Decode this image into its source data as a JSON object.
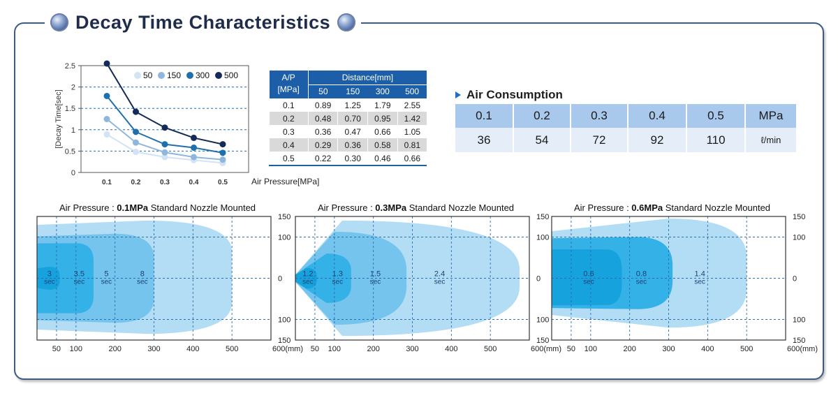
{
  "title": "Decay Time Characteristics",
  "chart_data": [
    {
      "type": "line",
      "ylabel": "[Decay Time[sec]",
      "xlabel": "Air Pressure[MPa]",
      "x": [
        0.1,
        0.2,
        0.3,
        0.4,
        0.5
      ],
      "x_tick_labels": [
        "0.1",
        "0.2",
        "0.3",
        "0.4",
        "0.5"
      ],
      "ylim": [
        0,
        2.5
      ],
      "y_tick_labels": [
        "0",
        "0.5",
        "1",
        "1.5",
        "2",
        "2.5"
      ],
      "y_ticks": [
        0,
        0.5,
        1,
        1.5,
        2,
        2.5
      ],
      "grid": "dashed horizontal",
      "legend_placement": "top-right",
      "series": [
        {
          "name": "50",
          "color": "#d3e3f3",
          "values": [
            0.89,
            0.48,
            0.36,
            0.29,
            0.22
          ]
        },
        {
          "name": "150",
          "color": "#8fb6dc",
          "values": [
            1.25,
            0.7,
            0.47,
            0.36,
            0.3
          ]
        },
        {
          "name": "300",
          "color": "#1e6fae",
          "values": [
            1.79,
            0.95,
            0.66,
            0.58,
            0.46
          ]
        },
        {
          "name": "500",
          "color": "#142a58",
          "values": [
            2.55,
            1.42,
            1.05,
            0.81,
            0.66
          ]
        }
      ]
    },
    {
      "type": "table",
      "corner_label_1": "A/P",
      "corner_label_2": "[MPa]",
      "group_header": "Distance[mm]",
      "columns": [
        "50",
        "150",
        "300",
        "500"
      ],
      "rows": [
        {
          "ap": "0.1",
          "cells": [
            "0.89",
            "1.25",
            "1.79",
            "2.55"
          ]
        },
        {
          "ap": "0.2",
          "cells": [
            "0.48",
            "0.70",
            "0.95",
            "1.42"
          ]
        },
        {
          "ap": "0.3",
          "cells": [
            "0.36",
            "0.47",
            "0.66",
            "1.05"
          ]
        },
        {
          "ap": "0.4",
          "cells": [
            "0.29",
            "0.36",
            "0.58",
            "0.81"
          ]
        },
        {
          "ap": "0.5",
          "cells": [
            "0.22",
            "0.30",
            "0.46",
            "0.66"
          ]
        }
      ]
    },
    {
      "type": "table",
      "title": "Air Consumption",
      "pressures": [
        "0.1",
        "0.2",
        "0.3",
        "0.4",
        "0.5"
      ],
      "pressure_unit": "MPa",
      "values": [
        "36",
        "54",
        "72",
        "92",
        "110"
      ],
      "value_unit": "ℓ/min"
    },
    {
      "type": "area",
      "title_prefix": "Air Pressure : ",
      "title_bold": "0.1MPa",
      "title_suffix": " Standard Nozzle Mounted",
      "x_ticks": [
        50,
        100,
        200,
        300,
        400,
        500
      ],
      "x_end_label": "600(mm)",
      "y_ticks": [
        "150",
        "100",
        "0",
        "100",
        "150"
      ],
      "xlim": [
        0,
        600
      ],
      "ylim": [
        -150,
        150
      ],
      "zones": [
        {
          "time": "8",
          "unit": "sec",
          "label_x": 270
        },
        {
          "time": "5",
          "unit": "sec",
          "label_x": 178
        },
        {
          "time": "3.5",
          "unit": "sec",
          "label_x": 108
        },
        {
          "time": "3",
          "unit": "sec",
          "label_x": 32
        }
      ]
    },
    {
      "type": "area",
      "title_prefix": "Air Pressure : ",
      "title_bold": "0.3MPa",
      "title_suffix": " Standard Nozzle Mounted",
      "x_ticks": [
        50,
        100,
        200,
        300,
        400,
        500
      ],
      "x_end_label": "600(mm)",
      "y_ticks": [
        "150",
        "100",
        "0",
        "100",
        "150"
      ],
      "xlim": [
        0,
        600
      ],
      "ylim": [
        -150,
        150
      ],
      "zones": [
        {
          "time": "2.4",
          "unit": "sec",
          "label_x": 370
        },
        {
          "time": "1.5",
          "unit": "sec",
          "label_x": 205
        },
        {
          "time": "1.3",
          "unit": "sec",
          "label_x": 108
        },
        {
          "time": "1.2",
          "unit": "sec",
          "label_x": 32
        }
      ]
    },
    {
      "type": "area",
      "title_prefix": "Air Pressure : ",
      "title_bold": "0.6MPa",
      "title_suffix": " Standard Nozzle Mounted",
      "x_ticks": [
        50,
        100,
        200,
        300,
        400,
        500
      ],
      "x_end_label": "600(mm)",
      "y_ticks": [
        "150",
        "100",
        "0",
        "100",
        "150"
      ],
      "xlim": [
        0,
        600
      ],
      "ylim": [
        -150,
        150
      ],
      "zones": [
        {
          "time": "1.4",
          "unit": "sec",
          "label_x": 380
        },
        {
          "time": "0.8",
          "unit": "sec",
          "label_x": 230
        },
        {
          "time": "0.6",
          "unit": "sec",
          "label_x": 95
        }
      ]
    }
  ],
  "colors": {
    "frame": "#3d5a80",
    "zone_light": "#b3ddf5",
    "zone_mid": "#74c4ee",
    "zone_strong": "#34b1e6",
    "zone_core": "#16a2dc",
    "table_header": "#1c5fa8"
  }
}
